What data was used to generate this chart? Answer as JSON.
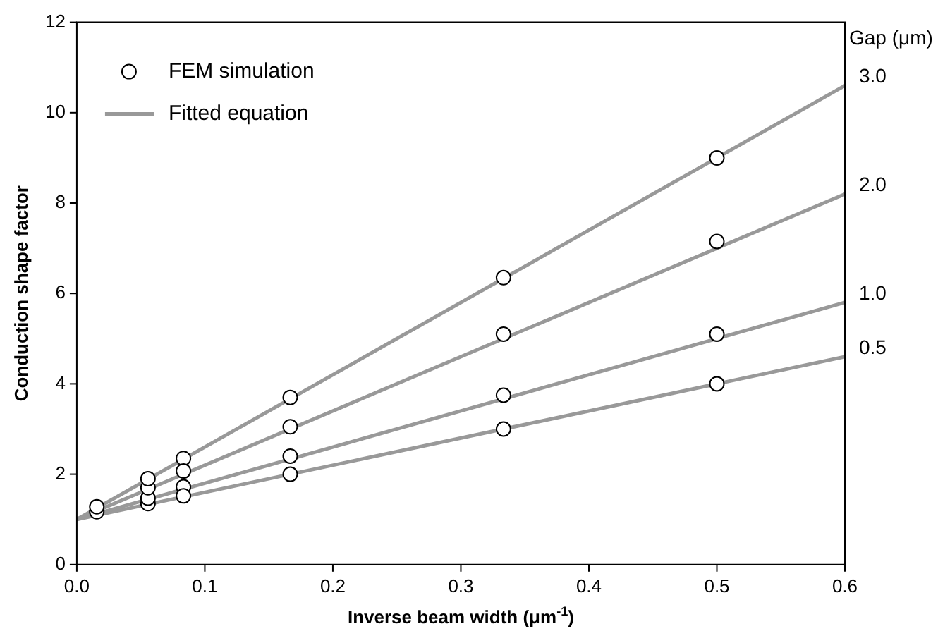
{
  "chart_data": {
    "type": "scatter",
    "xlabel": "Inverse beam width (μm$^{-1}$)",
    "ylabel": "Conduction shape factor",
    "xlim": [
      0,
      0.6
    ],
    "ylim": [
      0,
      12
    ],
    "xticks": [
      {
        "value": 0,
        "label": "0.0"
      },
      {
        "value": 0.1,
        "label": "0.1"
      },
      {
        "value": 0.2,
        "label": "0.2"
      },
      {
        "value": 0.3,
        "label": "0.3"
      },
      {
        "value": 0.4,
        "label": "0.4"
      },
      {
        "value": 0.5,
        "label": "0.5"
      },
      {
        "value": 0.6,
        "label": "0.6"
      }
    ],
    "yticks": [
      0,
      2,
      4,
      6,
      8,
      10,
      12
    ],
    "grid": false,
    "legend": "top left",
    "series": [
      {
        "name": "FEM simulation",
        "marker": "circle",
        "color": "#ffffff",
        "x": [
          0.0156,
          0.0156,
          0.0556,
          0.0556,
          0.0556,
          0.0556,
          0.0833,
          0.0833,
          0.0833,
          0.0833,
          0.1667,
          0.1667,
          0.1667,
          0.1667,
          0.3333,
          0.3333,
          0.3333,
          0.3333,
          0.5,
          0.5,
          0.5,
          0.5
        ],
        "values": [
          1.17,
          1.28,
          1.35,
          1.47,
          1.7,
          1.9,
          2.35,
          2.07,
          1.72,
          1.52,
          3.7,
          3.05,
          2.4,
          2.0,
          6.35,
          5.1,
          3.75,
          3.0,
          9.0,
          7.15,
          5.1,
          4.0
        ]
      },
      {
        "name": "3.0",
        "type": "line",
        "marker": "none",
        "color": "#999999",
        "x": [
          0,
          0.6
        ],
        "values": [
          1,
          10.6
        ]
      },
      {
        "name": "2.0",
        "type": "line",
        "marker": "none",
        "color": "#999999",
        "x": [
          0,
          0.6
        ],
        "values": [
          1,
          8.2
        ]
      },
      {
        "name": "1.0",
        "type": "line",
        "marker": "none",
        "color": "#999999",
        "x": [
          0,
          0.6
        ],
        "values": [
          1,
          5.8
        ]
      },
      {
        "name": "0.5",
        "type": "line",
        "marker": "none",
        "color": "#999999",
        "x": [
          0,
          0.6
        ],
        "values": [
          1,
          4.6
        ]
      }
    ],
    "legend_title": "Gap (μm)",
    "annotations": [
      "Fitted equation"
    ]
  }
}
